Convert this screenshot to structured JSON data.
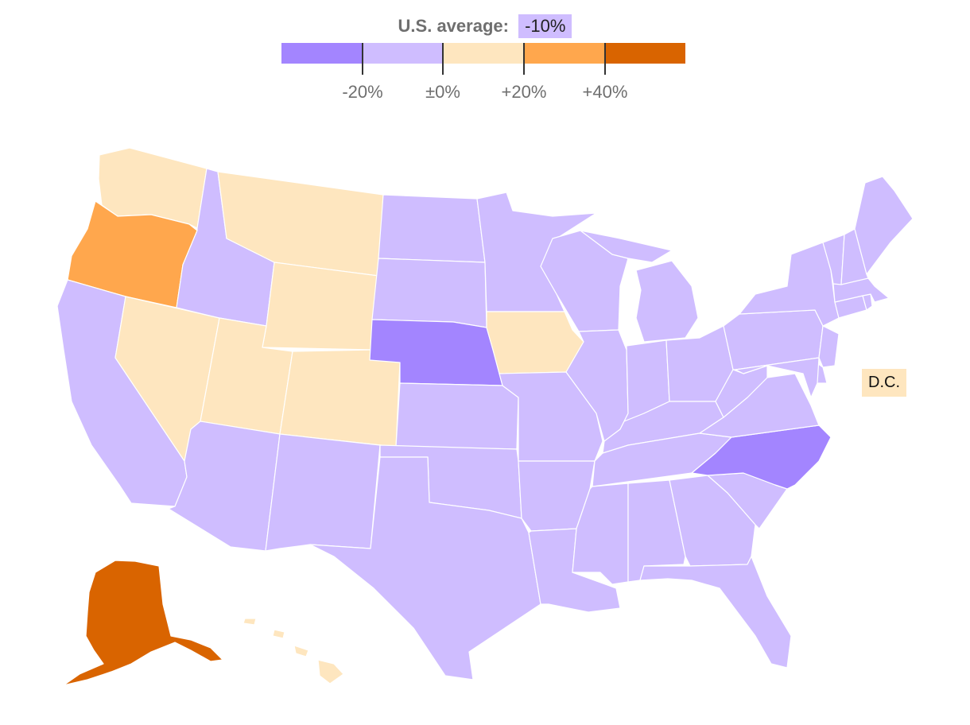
{
  "us_average": {
    "label": "U.S. average:",
    "value": "-10%"
  },
  "legend": {
    "bins": [
      {
        "color": "#a385ff"
      },
      {
        "color": "#cfbdff"
      },
      {
        "color": "#fee6bf"
      },
      {
        "color": "#ffa74d"
      },
      {
        "color": "#d96400"
      }
    ],
    "ticks": [
      "-20%",
      "±0%",
      "+20%",
      "+40%"
    ]
  },
  "dc": {
    "label": "D.C.",
    "color": "#fee6bf"
  },
  "states": {
    "WA": "#fee6bf",
    "OR": "#ffa74d",
    "CA": "#cfbdff",
    "NV": "#fee6bf",
    "ID": "#cfbdff",
    "MT": "#fee6bf",
    "WY": "#fee6bf",
    "UT": "#fee6bf",
    "CO": "#fee6bf",
    "AZ": "#cfbdff",
    "NM": "#cfbdff",
    "ND": "#cfbdff",
    "SD": "#cfbdff",
    "NE": "#a385ff",
    "KS": "#cfbdff",
    "OK": "#cfbdff",
    "TX": "#cfbdff",
    "MN": "#cfbdff",
    "IA": "#fee6bf",
    "MO": "#cfbdff",
    "AR": "#cfbdff",
    "LA": "#cfbdff",
    "WI": "#cfbdff",
    "IL": "#cfbdff",
    "MI": "#cfbdff",
    "IN": "#cfbdff",
    "OH": "#cfbdff",
    "KY": "#cfbdff",
    "TN": "#cfbdff",
    "MS": "#cfbdff",
    "AL": "#cfbdff",
    "GA": "#cfbdff",
    "FL": "#cfbdff",
    "SC": "#cfbdff",
    "NC": "#a385ff",
    "VA": "#cfbdff",
    "WV": "#cfbdff",
    "PA": "#cfbdff",
    "NY": "#cfbdff",
    "NJ": "#cfbdff",
    "DE": "#cfbdff",
    "MD": "#cfbdff",
    "CT": "#cfbdff",
    "RI": "#cfbdff",
    "MA": "#cfbdff",
    "VT": "#cfbdff",
    "NH": "#cfbdff",
    "ME": "#cfbdff",
    "AK": "#d96400",
    "HI": "#fee6bf"
  }
}
